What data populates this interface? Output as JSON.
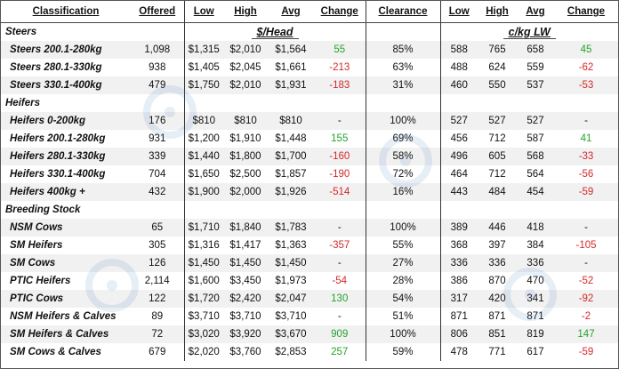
{
  "headers": [
    "Classification",
    "Offered",
    "Low",
    "High",
    "Avg",
    "Change",
    "Clearance",
    "Low",
    "High",
    "Avg",
    "Change"
  ],
  "units": {
    "head": "$/Head",
    "lw": "c/kg LW"
  },
  "sections": [
    {
      "title": "Steers",
      "rows": [
        {
          "cls": "Steers 200.1-280kg",
          "offered": "1,098",
          "low": "$1,315",
          "high": "$2,010",
          "avg": "$1,564",
          "change": "55",
          "clearance": "85%",
          "kg_low": "588",
          "kg_high": "765",
          "kg_avg": "658",
          "kg_change": "45"
        },
        {
          "cls": "Steers 280.1-330kg",
          "offered": "938",
          "low": "$1,405",
          "high": "$2,045",
          "avg": "$1,661",
          "change": "-213",
          "clearance": "63%",
          "kg_low": "488",
          "kg_high": "624",
          "kg_avg": "559",
          "kg_change": "-62"
        },
        {
          "cls": "Steers 330.1-400kg",
          "offered": "479",
          "low": "$1,750",
          "high": "$2,010",
          "avg": "$1,931",
          "change": "-183",
          "clearance": "31%",
          "kg_low": "460",
          "kg_high": "550",
          "kg_avg": "537",
          "kg_change": "-53"
        }
      ]
    },
    {
      "title": "Heifers",
      "rows": [
        {
          "cls": "Heifers 0-200kg",
          "offered": "176",
          "low": "$810",
          "high": "$810",
          "avg": "$810",
          "change": "-",
          "clearance": "100%",
          "kg_low": "527",
          "kg_high": "527",
          "kg_avg": "527",
          "kg_change": "-"
        },
        {
          "cls": "Heifers 200.1-280kg",
          "offered": "931",
          "low": "$1,200",
          "high": "$1,910",
          "avg": "$1,448",
          "change": "155",
          "clearance": "69%",
          "kg_low": "456",
          "kg_high": "712",
          "kg_avg": "587",
          "kg_change": "41"
        },
        {
          "cls": "Heifers 280.1-330kg",
          "offered": "339",
          "low": "$1,440",
          "high": "$1,800",
          "avg": "$1,700",
          "change": "-160",
          "clearance": "58%",
          "kg_low": "496",
          "kg_high": "605",
          "kg_avg": "568",
          "kg_change": "-33"
        },
        {
          "cls": "Heifers 330.1-400kg",
          "offered": "704",
          "low": "$1,650",
          "high": "$2,500",
          "avg": "$1,857",
          "change": "-190",
          "clearance": "72%",
          "kg_low": "464",
          "kg_high": "712",
          "kg_avg": "564",
          "kg_change": "-56"
        },
        {
          "cls": "Heifers 400kg +",
          "offered": "432",
          "low": "$1,900",
          "high": "$2,000",
          "avg": "$1,926",
          "change": "-514",
          "clearance": "16%",
          "kg_low": "443",
          "kg_high": "484",
          "kg_avg": "454",
          "kg_change": "-59"
        }
      ]
    },
    {
      "title": "Breeding Stock",
      "rows": [
        {
          "cls": "NSM Cows",
          "offered": "65",
          "low": "$1,710",
          "high": "$1,840",
          "avg": "$1,783",
          "change": "-",
          "clearance": "100%",
          "kg_low": "389",
          "kg_high": "446",
          "kg_avg": "418",
          "kg_change": "-"
        },
        {
          "cls": "SM Heifers",
          "offered": "305",
          "low": "$1,316",
          "high": "$1,417",
          "avg": "$1,363",
          "change": "-357",
          "clearance": "55%",
          "kg_low": "368",
          "kg_high": "397",
          "kg_avg": "384",
          "kg_change": "-105"
        },
        {
          "cls": "SM Cows",
          "offered": "126",
          "low": "$1,450",
          "high": "$1,450",
          "avg": "$1,450",
          "change": "-",
          "clearance": "27%",
          "kg_low": "336",
          "kg_high": "336",
          "kg_avg": "336",
          "kg_change": "-"
        },
        {
          "cls": "PTIC Heifers",
          "offered": "2,114",
          "low": "$1,600",
          "high": "$3,450",
          "avg": "$1,973",
          "change": "-54",
          "clearance": "28%",
          "kg_low": "386",
          "kg_high": "870",
          "kg_avg": "470",
          "kg_change": "-52"
        },
        {
          "cls": "PTIC Cows",
          "offered": "122",
          "low": "$1,720",
          "high": "$2,420",
          "avg": "$2,047",
          "change": "130",
          "clearance": "54%",
          "kg_low": "317",
          "kg_high": "420",
          "kg_avg": "341",
          "kg_change": "-92"
        },
        {
          "cls": "NSM Heifers & Calves",
          "offered": "89",
          "low": "$3,710",
          "high": "$3,710",
          "avg": "$3,710",
          "change": "-",
          "clearance": "51%",
          "kg_low": "871",
          "kg_high": "871",
          "kg_avg": "871",
          "kg_change": "-2"
        },
        {
          "cls": "SM Heifers & Calves",
          "offered": "72",
          "low": "$3,020",
          "high": "$3,920",
          "avg": "$3,670",
          "change": "909",
          "clearance": "100%",
          "kg_low": "806",
          "kg_high": "851",
          "kg_avg": "819",
          "kg_change": "147"
        },
        {
          "cls": "SM Cows & Calves",
          "offered": "679",
          "low": "$2,020",
          "high": "$3,760",
          "avg": "$2,853",
          "change": "257",
          "clearance": "59%",
          "kg_low": "478",
          "kg_high": "771",
          "kg_avg": "617",
          "kg_change": "-59"
        }
      ]
    }
  ],
  "colors": {
    "positive": "#22a52a",
    "negative": "#d42a2a",
    "stripe": "#f1f1f1"
  }
}
